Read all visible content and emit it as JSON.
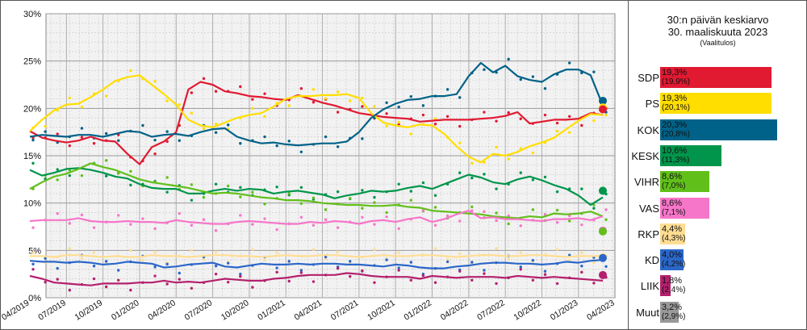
{
  "chart_data": {
    "type": "line",
    "title": "",
    "xlabel": "",
    "ylabel": "",
    "ylim": [
      0,
      30
    ],
    "grid": true,
    "y_ticks": [
      "0%",
      "5%",
      "10%",
      "15%",
      "20%",
      "25%",
      "30%"
    ],
    "x_ticks": [
      "04/2019",
      "07/2019",
      "10/2019",
      "01/2020",
      "04/2020",
      "07/2020",
      "10/2020",
      "01/2021",
      "04/2021",
      "07/2021",
      "10/2021",
      "01/2022",
      "04/2022",
      "07/2022",
      "10/2022",
      "01/2023",
      "04/2023"
    ],
    "x": [
      "04/2019",
      "05/2019",
      "06/2019",
      "07/2019",
      "08/2019",
      "09/2019",
      "10/2019",
      "11/2019",
      "12/2019",
      "01/2020",
      "02/2020",
      "03/2020",
      "04/2020",
      "05/2020",
      "06/2020",
      "07/2020",
      "08/2020",
      "09/2020",
      "10/2020",
      "11/2020",
      "12/2020",
      "01/2021",
      "02/2021",
      "03/2021",
      "04/2021",
      "05/2021",
      "06/2021",
      "07/2021",
      "08/2021",
      "09/2021",
      "10/2021",
      "11/2021",
      "12/2021",
      "01/2022",
      "02/2022",
      "03/2022",
      "04/2022",
      "05/2022",
      "06/2022",
      "07/2022",
      "08/2022",
      "09/2022",
      "10/2022",
      "11/2022",
      "12/2022",
      "01/2023",
      "02/2023",
      "03/2023"
    ],
    "series": [
      {
        "name": "SDP",
        "color": "#e11931",
        "values": [
          17.6,
          16.9,
          16.6,
          16.4,
          16.6,
          17.0,
          16.6,
          16.5,
          15.2,
          14.1,
          15.9,
          16.5,
          17.5,
          22.0,
          22.8,
          22.5,
          21.8,
          21.6,
          21.3,
          21.2,
          21.0,
          20.9,
          21.4,
          21.0,
          20.6,
          20.3,
          19.9,
          19.5,
          19.3,
          19.1,
          19.0,
          18.9,
          18.6,
          18.7,
          18.8,
          18.8,
          18.8,
          18.9,
          19.0,
          19.2,
          19.6,
          18.4,
          18.6,
          18.8,
          18.8,
          18.9,
          19.5,
          19.3
        ]
      },
      {
        "name": "PS",
        "color": "#ffde00",
        "values": [
          17.6,
          18.8,
          19.8,
          20.4,
          20.5,
          21.2,
          22.0,
          22.9,
          23.3,
          23.5,
          22.5,
          21.5,
          20.4,
          18.8,
          18.2,
          18.0,
          18.5,
          19.0,
          19.3,
          19.5,
          20.2,
          21.0,
          21.3,
          21.3,
          21.4,
          21.4,
          21.5,
          21.1,
          19.5,
          18.5,
          18.2,
          18.0,
          18.3,
          18.2,
          17.3,
          16.0,
          14.9,
          14.3,
          15.2,
          15.0,
          15.4,
          16.0,
          16.4,
          16.9,
          17.8,
          18.7,
          19.4,
          19.3
        ]
      },
      {
        "name": "KOK",
        "color": "#006288",
        "values": [
          17.0,
          17.2,
          17.1,
          17.0,
          17.2,
          17.2,
          17.0,
          17.3,
          17.6,
          17.5,
          17.0,
          17.2,
          17.3,
          17.1,
          17.5,
          17.8,
          17.9,
          17.0,
          16.6,
          16.3,
          16.4,
          16.2,
          16.1,
          16.2,
          16.3,
          16.3,
          16.5,
          17.5,
          19.0,
          19.9,
          20.5,
          20.9,
          21.0,
          21.3,
          21.3,
          21.5,
          23.4,
          24.8,
          23.8,
          24.5,
          23.4,
          23.0,
          22.8,
          23.6,
          24.1,
          24.1,
          23.5,
          20.3
        ]
      },
      {
        "name": "KESK",
        "color": "#01954b",
        "values": [
          13.5,
          12.9,
          13.2,
          13.6,
          13.7,
          13.5,
          13.2,
          12.8,
          12.6,
          12.0,
          11.6,
          11.5,
          11.5,
          11.0,
          11.0,
          11.3,
          11.5,
          11.3,
          11.5,
          11.4,
          11.0,
          11.2,
          11.3,
          11.1,
          10.9,
          10.5,
          10.8,
          11.0,
          11.3,
          11.2,
          11.3,
          11.6,
          11.8,
          11.5,
          12.0,
          12.5,
          13.0,
          12.7,
          12.2,
          12.0,
          12.5,
          12.8,
          12.4,
          11.9,
          11.5,
          10.8,
          9.8,
          10.6
        ]
      },
      {
        "name": "VIHR",
        "color": "#61bf1a",
        "values": [
          11.5,
          12.2,
          12.8,
          13.1,
          13.6,
          14.2,
          13.8,
          13.5,
          13.0,
          12.5,
          12.2,
          12.0,
          11.8,
          11.6,
          11.3,
          11.0,
          11.1,
          11.0,
          10.8,
          10.6,
          10.5,
          10.3,
          10.3,
          10.2,
          10.0,
          9.9,
          9.8,
          9.8,
          9.7,
          9.7,
          9.8,
          9.6,
          9.5,
          9.2,
          9.1,
          9.0,
          8.9,
          8.8,
          8.6,
          8.5,
          8.4,
          8.6,
          8.5,
          8.9,
          8.8,
          8.9,
          9.1,
          8.6
        ]
      },
      {
        "name": "VAS",
        "color": "#f676c9",
        "values": [
          8.1,
          8.2,
          8.2,
          8.2,
          8.4,
          8.1,
          8.0,
          8.0,
          8.1,
          8.0,
          8.0,
          7.9,
          8.2,
          8.0,
          7.9,
          7.8,
          7.8,
          8.0,
          8.1,
          8.0,
          7.9,
          7.8,
          7.8,
          8.0,
          7.9,
          8.1,
          8.0,
          7.8,
          8.1,
          8.2,
          8.0,
          8.3,
          8.5,
          8.0,
          8.3,
          8.8,
          9.2,
          8.4,
          8.5,
          8.3,
          8.3,
          8.2,
          8.1,
          8.3,
          8.3,
          8.4,
          8.2,
          8.6
        ]
      },
      {
        "name": "RKP",
        "color": "#ffdd93",
        "values": [
          4.4,
          4.4,
          4.3,
          4.5,
          4.5,
          4.4,
          4.3,
          4.4,
          4.3,
          4.3,
          4.5,
          4.4,
          4.4,
          4.3,
          4.4,
          4.5,
          4.5,
          4.4,
          4.4,
          4.3,
          4.4,
          4.5,
          4.4,
          4.4,
          4.5,
          4.5,
          4.4,
          4.3,
          4.4,
          4.5,
          4.4,
          4.4,
          4.5,
          4.5,
          4.4,
          4.3,
          4.4,
          4.5,
          4.5,
          4.4,
          4.4,
          4.5,
          4.5,
          4.4,
          4.3,
          4.4,
          4.4,
          4.4
        ]
      },
      {
        "name": "KD",
        "color": "#2b67c9",
        "values": [
          3.9,
          3.8,
          3.8,
          3.7,
          3.8,
          3.7,
          3.5,
          3.6,
          3.8,
          3.7,
          3.6,
          3.2,
          3.3,
          3.5,
          3.6,
          3.7,
          3.3,
          3.2,
          3.4,
          3.6,
          3.5,
          3.5,
          3.6,
          3.5,
          3.6,
          3.6,
          3.5,
          3.5,
          3.4,
          3.3,
          3.5,
          3.4,
          3.2,
          3.1,
          3.1,
          3.3,
          3.4,
          3.6,
          3.7,
          3.7,
          3.6,
          3.6,
          3.5,
          3.6,
          3.8,
          3.7,
          3.9,
          4.0
        ]
      },
      {
        "name": "LIIK",
        "color": "#b4206d",
        "values": [
          2.3,
          2.0,
          1.6,
          1.5,
          1.4,
          1.3,
          1.5,
          1.5,
          1.5,
          1.6,
          1.6,
          1.8,
          1.6,
          1.7,
          1.6,
          1.8,
          2.0,
          1.9,
          1.8,
          1.8,
          2.0,
          2.1,
          2.3,
          2.4,
          2.4,
          2.4,
          2.6,
          2.5,
          2.3,
          2.2,
          2.2,
          2.2,
          2.0,
          2.3,
          2.2,
          2.1,
          2.2,
          2.2,
          2.2,
          2.1,
          2.3,
          2.2,
          2.1,
          2.2,
          2.1,
          2.0,
          1.9,
          1.8
        ]
      }
    ],
    "end_markers": [
      {
        "name": "KOK",
        "value": 20.8
      },
      {
        "name": "PS",
        "value": 20.1
      },
      {
        "name": "SDP",
        "value": 19.9
      },
      {
        "name": "KESK",
        "value": 11.3
      },
      {
        "name": "VAS",
        "value": 7.1
      },
      {
        "name": "VIHR",
        "value": 7.0
      },
      {
        "name": "RKP",
        "value": 4.3
      },
      {
        "name": "KD",
        "value": 4.2
      },
      {
        "name": "LIIK",
        "value": 2.4
      }
    ]
  },
  "side_panel": {
    "title_line1": "30:n päivän keskiarvo",
    "title_line2": "30. maaliskuuta 2023",
    "subtitle": "(Vaalitulos)",
    "bar_max": 20.3,
    "rows": [
      {
        "party": "SDP",
        "value": 19.3,
        "value_text": "19,3%",
        "result_text": "(19,9%)",
        "color": "#e11931"
      },
      {
        "party": "PS",
        "value": 19.3,
        "value_text": "19,3%",
        "result_text": "(20,1%)",
        "color": "#ffde00"
      },
      {
        "party": "KOK",
        "value": 20.3,
        "value_text": "20,3%",
        "result_text": "(20,8%)",
        "color": "#006288"
      },
      {
        "party": "KESK",
        "value": 10.6,
        "value_text": "10,6%",
        "result_text": "(11,3%)",
        "color": "#01954b"
      },
      {
        "party": "VIHR",
        "value": 8.6,
        "value_text": "8,6%",
        "result_text": "(7,0%)",
        "color": "#61bf1a"
      },
      {
        "party": "VAS",
        "value": 8.6,
        "value_text": "8,6%",
        "result_text": "(7,1%)",
        "color": "#f676c9"
      },
      {
        "party": "RKP",
        "value": 4.4,
        "value_text": "4,4%",
        "result_text": "(4,3%)",
        "color": "#ffdd93"
      },
      {
        "party": "KD",
        "value": 4.0,
        "value_text": "4,0%",
        "result_text": "(4,2%)",
        "color": "#2b67c9"
      },
      {
        "party": "LIIK",
        "value": 1.8,
        "value_text": "1,8%",
        "result_text": "(2,4%)",
        "color": "#b4206d"
      },
      {
        "party": "Muut",
        "value": 3.2,
        "value_text": "3,2%",
        "result_text": "(2,9%)",
        "color": "#999999"
      }
    ]
  }
}
